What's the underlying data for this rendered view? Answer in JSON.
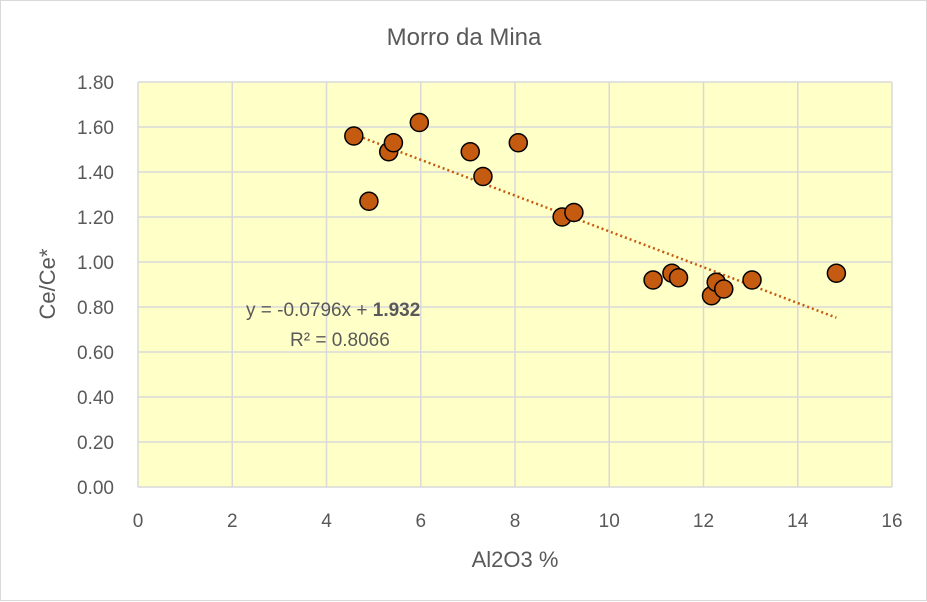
{
  "chart_data": {
    "type": "scatter",
    "title": "Morro da Mina",
    "xlabel": "Al2O3 %",
    "ylabel": "Ce/Ce*",
    "xlim": [
      0,
      16
    ],
    "ylim": [
      0,
      1.8
    ],
    "x_ticks": [
      "0",
      "2",
      "4",
      "6",
      "8",
      "10",
      "12",
      "14",
      "16"
    ],
    "y_ticks": [
      "0.00",
      "0.20",
      "0.40",
      "0.60",
      "0.80",
      "1.00",
      "1.20",
      "1.40",
      "1.60",
      "1.80"
    ],
    "grid": true,
    "plot_background": "#ffffc8",
    "marker_color": "#c55a11",
    "trendline_color": "#c55a11",
    "series": [
      {
        "points": [
          [
            4.58,
            1.56
          ],
          [
            4.9,
            1.27
          ],
          [
            5.32,
            1.49
          ],
          [
            5.42,
            1.53
          ],
          [
            5.97,
            1.62
          ],
          [
            7.05,
            1.49
          ],
          [
            7.32,
            1.38
          ],
          [
            8.07,
            1.53
          ],
          [
            9.0,
            1.2
          ],
          [
            9.25,
            1.22
          ],
          [
            10.93,
            0.92
          ],
          [
            11.33,
            0.95
          ],
          [
            11.47,
            0.93
          ],
          [
            12.17,
            0.85
          ],
          [
            12.27,
            0.91
          ],
          [
            12.43,
            0.88
          ],
          [
            13.03,
            0.92
          ],
          [
            14.82,
            0.95
          ]
        ]
      }
    ],
    "trendline": {
      "type": "linear",
      "slope": -0.0796,
      "intercept": 1.932,
      "x_range": [
        4.58,
        14.82
      ],
      "equation_prefix": "y = -0.0796x + ",
      "equation_intercept": "1.932",
      "r_squared": "R² = 0.8066"
    }
  }
}
